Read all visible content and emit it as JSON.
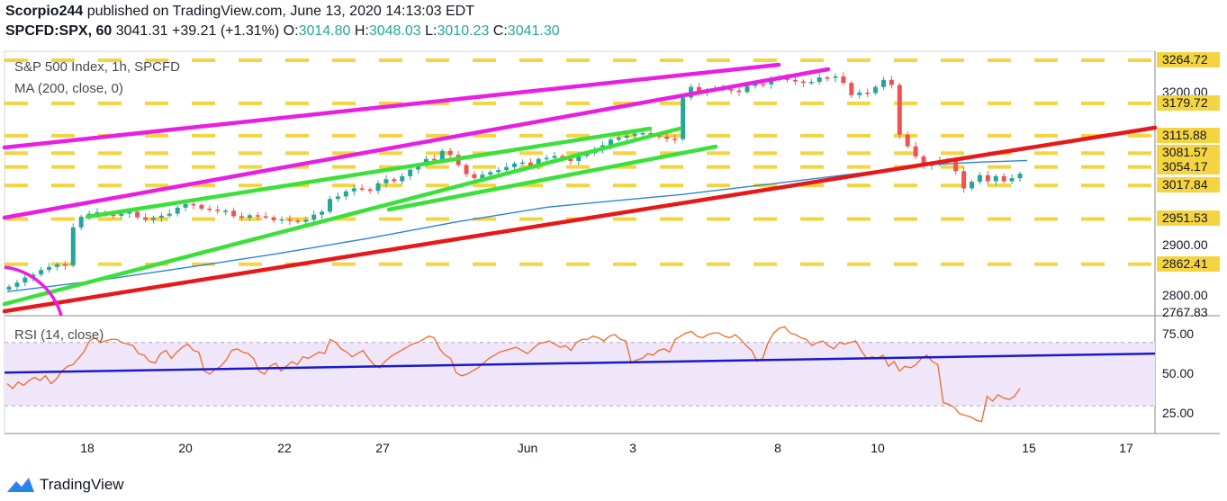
{
  "header": {
    "author": "Scorpio244",
    "published_on": "published on TradingView.com, June 13, 2020 14:13:03 EDT",
    "symbol": "SPCFD:SPX, 60",
    "last": "3041.31",
    "change": "+39.21 (+1.31%)",
    "open_label": "O:",
    "open": "3014.80",
    "high_label": "H:",
    "high": "3048.03",
    "low_label": "L:",
    "low": "3010.23",
    "close_label": "C:",
    "close": "3041.30"
  },
  "legend": {
    "title": "S&P 500 Index, 1h, SPCFD",
    "ma": "MA (200, close, 0)",
    "rsi": "RSI (14, close)"
  },
  "footer": {
    "brand": "TradingView"
  },
  "colors": {
    "up": "#26a69a",
    "down": "#ef5350",
    "accent": "#f5d442",
    "magenta": "#e91ee3",
    "green": "#3ce03a",
    "red": "#e81818",
    "ma": "#2b83d8",
    "rsi_line": "#f06a28",
    "rsi_trend": "#1a1ac8",
    "rsi_band": "#f0e6fa"
  },
  "chart_data": {
    "type": "candlestick",
    "price_axis": {
      "ticks": [
        "3200.00",
        "2900.00",
        "2800.00"
      ],
      "ylim": [
        2767.83,
        3264.72
      ]
    },
    "price_labels": [
      {
        "value": "3264.72",
        "highlight": true
      },
      {
        "value": "3179.72",
        "highlight": true
      },
      {
        "value": "3115.88",
        "highlight": true
      },
      {
        "value": "3081.57",
        "highlight": true
      },
      {
        "value": "3054.17",
        "highlight": true
      },
      {
        "value": "3017.84",
        "highlight": true
      },
      {
        "value": "2951.53",
        "highlight": true
      },
      {
        "value": "2862.41",
        "highlight": true
      },
      {
        "value": "2767.83",
        "highlight": false
      }
    ],
    "horizontal_levels": [
      3264.72,
      3179.72,
      3115.88,
      3081.57,
      3054.17,
      3017.84,
      2951.53,
      2862.41
    ],
    "x_ticks": [
      "18",
      "20",
      "22",
      "27",
      "Jun",
      "3",
      "8",
      "10",
      "15",
      "17"
    ],
    "rsi_axis": {
      "ticks": [
        "75.00",
        "50.00",
        "25.00"
      ],
      "band": [
        30,
        70
      ],
      "ylim": [
        14,
        84
      ]
    },
    "closes": [
      2818,
      2826,
      2836,
      2842,
      2851,
      2857,
      2862,
      2860,
      2935,
      2956,
      2962,
      2965,
      2960,
      2958,
      2962,
      2966,
      2955,
      2950,
      2954,
      2958,
      2962,
      2974,
      2981,
      2979,
      2972,
      2970,
      2968,
      2968,
      2957,
      2954,
      2959,
      2957,
      2955,
      2949,
      2951,
      2948,
      2946,
      2950,
      2960,
      2966,
      2991,
      2996,
      3006,
      3012,
      3010,
      3007,
      3022,
      3030,
      3026,
      3036,
      3049,
      3058,
      3070,
      3068,
      3086,
      3078,
      3058,
      3040,
      3032,
      3039,
      3044,
      3048,
      3054,
      3061,
      3063,
      3056,
      3070,
      3072,
      3076,
      3070,
      3066,
      3076,
      3082,
      3088,
      3097,
      3108,
      3112,
      3116,
      3120,
      3121,
      3117,
      3114,
      3110,
      3109,
      3191,
      3212,
      3202,
      3206,
      3209,
      3208,
      3205,
      3202,
      3214,
      3218,
      3217,
      3226,
      3232,
      3226,
      3223,
      3220,
      3222,
      3231,
      3230,
      3233,
      3220,
      3196,
      3201,
      3200,
      3212,
      3226,
      3216,
      3118,
      3095,
      3075,
      3057,
      3059,
      3067,
      3068,
      3046,
      3012,
      3025,
      3038,
      3026,
      3036,
      3026,
      3032,
      3041
    ],
    "ma200": [
      [
        0,
        2808
      ],
      [
        100,
        2830
      ],
      [
        200,
        2856
      ],
      [
        300,
        2883
      ],
      [
        400,
        2913
      ],
      [
        500,
        2946
      ],
      [
        600,
        2975
      ],
      [
        750,
        3000
      ],
      [
        850,
        3021
      ],
      [
        970,
        3047
      ],
      [
        1020,
        3058
      ],
      [
        1070,
        3063
      ],
      [
        1133,
        3067
      ]
    ],
    "rsi": [
      44,
      41,
      45,
      43,
      46,
      48,
      46,
      49,
      44,
      47,
      52,
      55,
      56,
      60,
      64,
      71,
      73,
      70,
      71,
      72,
      72,
      70,
      69,
      68,
      63,
      62,
      58,
      57,
      63,
      65,
      60,
      64,
      67,
      69,
      65,
      64,
      52,
      50,
      53,
      55,
      59,
      65,
      66,
      64,
      63,
      60,
      52,
      50,
      55,
      57,
      52,
      55,
      58,
      56,
      61,
      60,
      62,
      64,
      63,
      72,
      70,
      66,
      64,
      61,
      63,
      65,
      60,
      56,
      54,
      58,
      61,
      63,
      65,
      67,
      69,
      70,
      72,
      74,
      73,
      66,
      62,
      60,
      51,
      49,
      50,
      52,
      54,
      57,
      60,
      62,
      64,
      65,
      66,
      67,
      65,
      63,
      66,
      69,
      70,
      71,
      69,
      67,
      68,
      65,
      70,
      72,
      72,
      74,
      73,
      71,
      74,
      75,
      72,
      71,
      57,
      59,
      60,
      63,
      62,
      65,
      66,
      64,
      72,
      74,
      76,
      77,
      74,
      73,
      75,
      76,
      76,
      74,
      73,
      75,
      72,
      68,
      65,
      58,
      60,
      70,
      76,
      79,
      80,
      76,
      75,
      73,
      72,
      68,
      70,
      71,
      68,
      66,
      70,
      69,
      70,
      71,
      65,
      60,
      61,
      60,
      62,
      55,
      58,
      52,
      55,
      54,
      56,
      60,
      62,
      58,
      56,
      32,
      31,
      29,
      25,
      24,
      23,
      21,
      20,
      36,
      33,
      37,
      35,
      34,
      36,
      41
    ],
    "rsi_trend": [
      51,
      63
    ],
    "trendlines": [
      {
        "color": "magenta",
        "pts": [
          [
            5,
            164
          ],
          [
            865,
            72
          ]
        ]
      },
      {
        "color": "magenta",
        "pts": [
          [
            5,
            242
          ],
          [
            920,
            77
          ]
        ]
      },
      {
        "color": "green",
        "pts": [
          [
            97,
            241
          ],
          [
            722,
            143
          ]
        ]
      },
      {
        "color": "green",
        "pts": [
          [
            5,
            338
          ],
          [
            755,
            143
          ]
        ]
      },
      {
        "color": "green",
        "pts": [
          [
            432,
            233
          ],
          [
            795,
            163
          ]
        ]
      },
      {
        "color": "red",
        "pts": [
          [
            5,
            346
          ],
          [
            1283,
            142
          ]
        ]
      }
    ],
    "arc": {
      "cx": -5,
      "cy": 365,
      "r": 75
    }
  }
}
